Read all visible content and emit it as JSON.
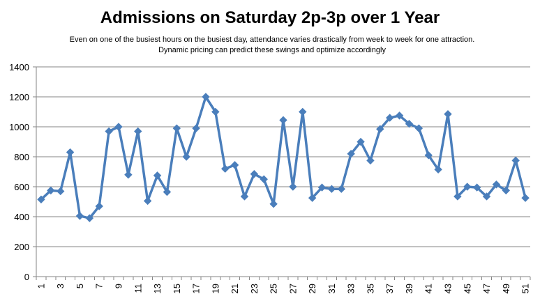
{
  "chart_data": {
    "type": "line",
    "title": "Admissions on Saturday 2p-3p over 1 Year",
    "subtitle": "Even on one of the busiest hours on the busiest day, attendance varies drastically from week to week for one attraction. Dynamic pricing can predict these swings and optimize accordingly",
    "xlabel": "",
    "ylabel": "",
    "ylim": [
      0,
      1400
    ],
    "yticks": [
      0,
      200,
      400,
      600,
      800,
      1000,
      1200,
      1400
    ],
    "x": [
      1,
      2,
      3,
      4,
      5,
      6,
      7,
      8,
      9,
      10,
      11,
      12,
      13,
      14,
      15,
      16,
      17,
      18,
      19,
      20,
      21,
      22,
      23,
      24,
      25,
      26,
      27,
      28,
      29,
      30,
      31,
      32,
      33,
      34,
      35,
      36,
      37,
      38,
      39,
      40,
      41,
      42,
      43,
      44,
      45,
      46,
      47,
      48,
      49,
      50,
      51
    ],
    "xtick_labels": [
      "1",
      "3",
      "5",
      "7",
      "9",
      "11",
      "13",
      "15",
      "17",
      "19",
      "21",
      "23",
      "25",
      "27",
      "29",
      "31",
      "33",
      "35",
      "37",
      "39",
      "41",
      "43",
      "45",
      "47",
      "49",
      "51"
    ],
    "series": [
      {
        "values": [
          515,
          575,
          570,
          830,
          405,
          390,
          470,
          970,
          1000,
          680,
          970,
          505,
          675,
          565,
          990,
          800,
          990,
          1200,
          1100,
          720,
          745,
          535,
          685,
          650,
          485,
          1045,
          600,
          1100,
          525,
          595,
          585,
          585,
          820,
          900,
          775,
          985,
          1060,
          1075,
          1020,
          990,
          810,
          715,
          1085,
          535,
          600,
          595,
          535,
          615,
          575,
          775,
          525
        ],
        "color": "#4A7EBB"
      }
    ],
    "grid": true,
    "legend": "none"
  }
}
